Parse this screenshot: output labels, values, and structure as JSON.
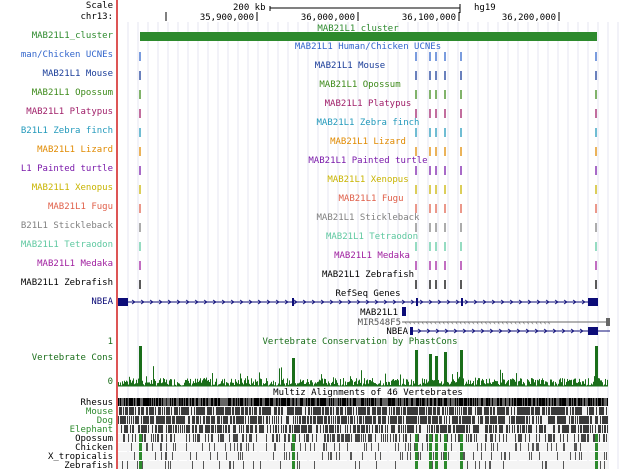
{
  "ruler": {
    "scale_label": "Scale",
    "chrom_label": "chr13:",
    "scale_bar_text": "200 kb",
    "assembly": "hg19",
    "ticks": [
      "35,900,000",
      "36,000,000",
      "36,100,000",
      "36,200,000"
    ]
  },
  "tracks": {
    "cluster": {
      "side_label": "MAB21L1_cluster",
      "center_label": "MAB21L1_cluster",
      "color": "#2d8a2d"
    },
    "species": [
      {
        "side_label": "man/Chicken UCNEs",
        "center_label": "MAB21L1 Human/Chicken UCNEs",
        "color": "#3366cc"
      },
      {
        "side_label": "MAB21L1 Mouse",
        "center_label": "MAB21L1 Mouse",
        "color": "#1a3d99"
      },
      {
        "side_label": "MAB21L1 Opossum",
        "center_label": "MAB21L1 Opossum",
        "color": "#3d8a1a"
      },
      {
        "side_label": "MAB21L1 Platypus",
        "center_label": "MAB21L1 Platypus",
        "color": "#a0206a"
      },
      {
        "side_label": "B21L1 Zebra finch",
        "center_label": "MAB21L1 Zebra finch",
        "color": "#2299bb"
      },
      {
        "side_label": "MAB21L1 Lizard",
        "center_label": "MAB21L1 Lizard",
        "color": "#e08a00"
      },
      {
        "side_label": "L1 Painted turtle",
        "center_label": "MAB21L1 Painted turtle",
        "color": "#7a1aaa"
      },
      {
        "side_label": "MAB21L1 Xenopus",
        "center_label": "MAB21L1 Xenopus",
        "color": "#c8b400"
      },
      {
        "side_label": "MAB21L1 Fugu",
        "center_label": "MAB21L1 Fugu",
        "color": "#e0604a"
      },
      {
        "side_label": "B21L1 Stickleback",
        "center_label": "MAB21L1 Stickleback",
        "color": "#808080"
      },
      {
        "side_label": "MAB21L1 Tetraodon",
        "center_label": "MAB21L1 Tetraodon",
        "color": "#5ec8a0"
      },
      {
        "side_label": "MAB21L1 Medaka",
        "center_label": "MAB21L1 Medaka",
        "color": "#a020a0"
      },
      {
        "side_label": "MAB21L1 Zebrafish",
        "center_label": "MAB21L1 Zebrafish",
        "color": "#000000"
      }
    ],
    "refseq": {
      "title": "RefSeq Genes",
      "gene1": "NBEA",
      "gene2": "MAB21L1",
      "gene3": "MIR548F5",
      "gene4": "NBEA",
      "color": "#0c0c78"
    },
    "conservation": {
      "side_label": "Vertebrate Cons",
      "center_label": "Vertebrate Conservation by PhastCons",
      "axis_top": "1",
      "axis_bottom": "0",
      "color": "#1a6e1a"
    },
    "multiz": {
      "title": "Multiz Alignments of 46 Vertebrates",
      "species": [
        {
          "name": "Rhesus",
          "color": "#000000"
        },
        {
          "name": "Mouse",
          "color": "#2d8a2d"
        },
        {
          "name": "Dog",
          "color": "#2d8a2d"
        },
        {
          "name": "Elephant",
          "color": "#2d8a2d"
        },
        {
          "name": "Opossum",
          "color": "#000000"
        },
        {
          "name": "Chicken",
          "color": "#000000"
        },
        {
          "name": "X_tropicalis",
          "color": "#000000"
        },
        {
          "name": "Zebrafish",
          "color": "#000000"
        }
      ]
    }
  }
}
